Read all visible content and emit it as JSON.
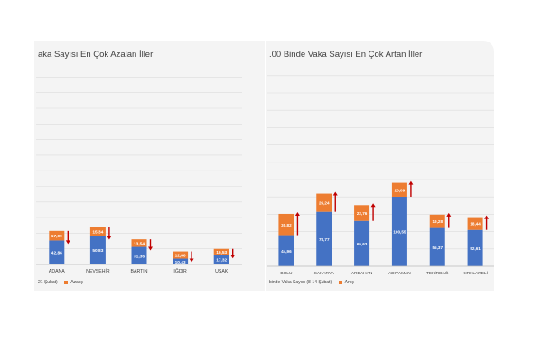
{
  "chart_data": [
    {
      "type": "bar",
      "stacked": true,
      "title": "aka Sayısı En Çok Azalan İller",
      "categories": [
        "ADANA",
        "NEVŞEHİR",
        "BARTIN",
        "IĞDIR",
        "UŞAK"
      ],
      "series": [
        {
          "name": "",
          "values": [
            42.86,
            50.83,
            31.36,
            10.43,
            17.32
          ],
          "labels": [
            "42,86",
            "50,83",
            "31,36",
            "10,43",
            "17,32"
          ]
        },
        {
          "name": "Azalış",
          "values": [
            17.09,
            15.34,
            13.54,
            12.86,
            10.53
          ],
          "labels": [
            "17,09",
            "15,34",
            "13,54",
            "12,86",
            "10,53"
          ]
        }
      ],
      "legend_text": "21 Şubat)",
      "arrow": "down",
      "grid": true
    },
    {
      "type": "bar",
      "stacked": true,
      "title": ".00 Binde Vaka Sayısı En Çok Artan İller",
      "categories": [
        "BOLU",
        "SAKARYA",
        "ARDAHAN",
        "ADIYAMAN",
        "TEKİRDAĞ",
        "KIRKLARELİ"
      ],
      "series": [
        {
          "name": "binde Vaka Sayısı (8-14 Şubat)",
          "values": [
            44.96,
            78.77,
            65.63,
            100.55,
            55.37,
            52.61
          ],
          "labels": [
            "44,96",
            "78,77",
            "65,63",
            "100,55",
            "55,37",
            "52,61"
          ]
        },
        {
          "name": "Artış",
          "values": [
            30.82,
            26.24,
            22.76,
            20.09,
            19.28,
            18.44
          ],
          "labels": [
            "30,82",
            "26,24",
            "22,76",
            "20,09",
            "19,28",
            "18,44"
          ]
        }
      ],
      "arrow": "up",
      "grid": true
    }
  ],
  "colors": {
    "base": "#4472c4",
    "delta": "#ed7d31",
    "arrow": "#c00000"
  }
}
